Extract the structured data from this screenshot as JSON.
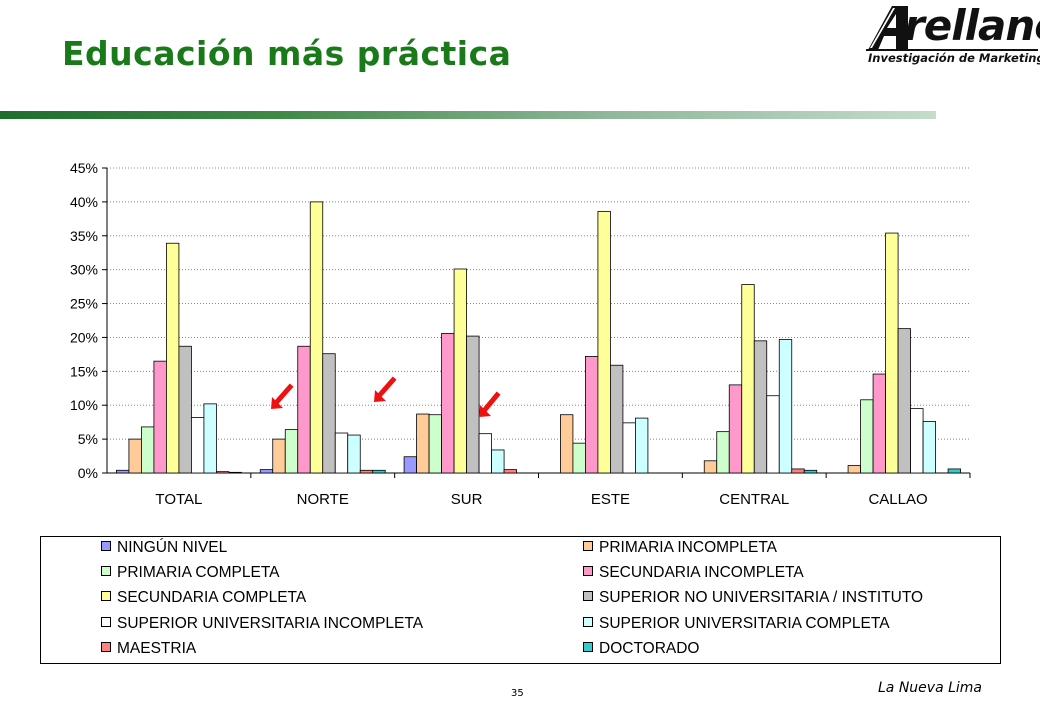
{
  "title": "Educación más práctica",
  "logo": {
    "word": "rellano",
    "tagline": "Investigación de Marketing"
  },
  "footer": "La Nueva Lima",
  "page_number": "35",
  "chart_data": {
    "type": "bar",
    "categories": [
      "TOTAL",
      "NORTE",
      "SUR",
      "ESTE",
      "CENTRAL",
      "CALLAO"
    ],
    "ylim": [
      0,
      45
    ],
    "yticks": [
      0,
      5,
      10,
      15,
      20,
      25,
      30,
      35,
      40,
      45
    ],
    "ytick_labels": [
      "0%",
      "5%",
      "10%",
      "15%",
      "20%",
      "25%",
      "30%",
      "35%",
      "40%",
      "45%"
    ],
    "grid": "horizontal dotted",
    "legend_position": "bottom",
    "series": [
      {
        "name": "NINGÚN NIVEL",
        "color": "#9999ff",
        "values": [
          0.4,
          0.5,
          2.4,
          0,
          0,
          0
        ]
      },
      {
        "name": "PRIMARIA INCOMPLETA",
        "color": "#ffcc99",
        "values": [
          5.0,
          5.0,
          8.7,
          8.6,
          1.8,
          1.1
        ]
      },
      {
        "name": "PRIMARIA COMPLETA",
        "color": "#ccffcc",
        "values": [
          6.8,
          6.4,
          8.6,
          4.4,
          6.1,
          10.8
        ]
      },
      {
        "name": "SECUNDARIA INCOMPLETA",
        "color": "#ff99cc",
        "values": [
          16.5,
          18.7,
          20.6,
          17.2,
          13.0,
          14.6
        ]
      },
      {
        "name": "SECUNDARIA COMPLETA",
        "color": "#ffff99",
        "values": [
          33.9,
          40.0,
          30.1,
          38.6,
          27.8,
          35.4
        ]
      },
      {
        "name": "SUPERIOR NO UNIVERSITARIA / INSTITUTO",
        "color": "#c0c0c0",
        "values": [
          18.7,
          17.6,
          20.2,
          15.9,
          19.5,
          21.3
        ]
      },
      {
        "name": "SUPERIOR UNIVERSITARIA INCOMPLETA",
        "color": "#ffffff",
        "values": [
          8.2,
          5.9,
          5.8,
          7.4,
          11.4,
          9.5
        ]
      },
      {
        "name": "SUPERIOR UNIVERSITARIA COMPLETA",
        "color": "#ccffff",
        "values": [
          10.2,
          5.6,
          3.4,
          8.1,
          19.7,
          7.6
        ]
      },
      {
        "name": "MAESTRIA",
        "color": "#ff8080",
        "values": [
          0.2,
          0.4,
          0.5,
          0,
          0.6,
          0
        ]
      },
      {
        "name": "DOCTORADO",
        "color": "#33cccc",
        "values": [
          0.1,
          0.4,
          0,
          0,
          0.4,
          0.6
        ]
      }
    ]
  },
  "colors": {
    "title": "#1a7a1a",
    "arrow": "#ee1111"
  }
}
